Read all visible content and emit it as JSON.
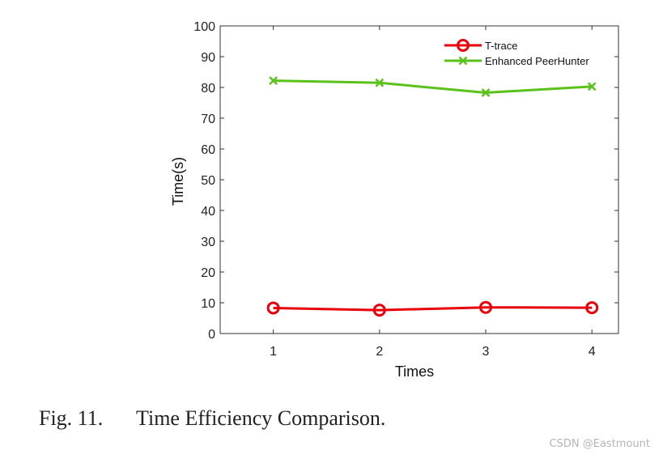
{
  "chart_data": {
    "type": "line",
    "x": [
      1,
      2,
      3,
      4
    ],
    "xticks": [
      "1",
      "2",
      "3",
      "4"
    ],
    "xlim": [
      0.5,
      4.25
    ],
    "yticks": [
      0,
      10,
      20,
      30,
      40,
      50,
      60,
      70,
      80,
      90,
      100
    ],
    "ylim": [
      0,
      100
    ],
    "xlabel": "Times",
    "ylabel": "Time(s)",
    "grid": false,
    "legend_position": "top-right",
    "series": [
      {
        "name": "T-trace",
        "values": [
          8.3,
          7.6,
          8.5,
          8.4
        ],
        "color": "#e8000b",
        "marker": "circle"
      },
      {
        "name": "Enhanced PeerHunter",
        "values": [
          82.2,
          81.5,
          78.3,
          80.3
        ],
        "color": "#5ac21a",
        "marker": "x"
      }
    ]
  },
  "caption": {
    "number": "Fig. 11.",
    "text": "Time Efficiency Comparison."
  },
  "watermark": "CSDN @Eastmount"
}
